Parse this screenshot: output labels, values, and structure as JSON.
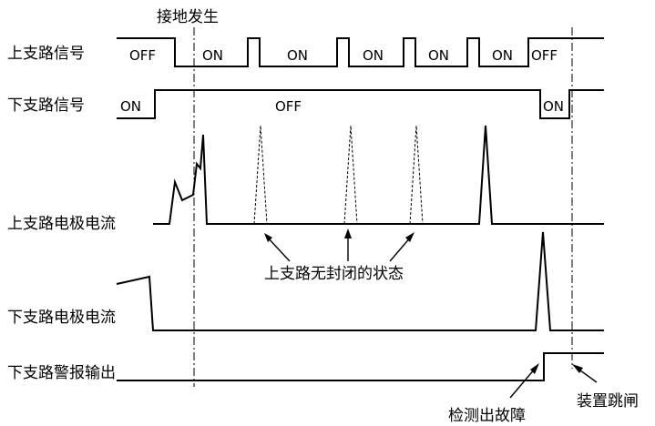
{
  "colors": {
    "line": "#000000",
    "background": "#ffffff"
  },
  "labels": {
    "upper_signal": "上支路信号",
    "lower_signal": "下支路信号",
    "upper_current": "上支路电极电流",
    "lower_current": "下支路电极电流",
    "lower_alarm": "下支路警报输出"
  },
  "events": {
    "ground_fault": "接地发生",
    "fault_detected": "检测出故障",
    "device_trip": "装置跳闸"
  },
  "annotations": {
    "unsealed_state": "上支路无封闭的状态"
  },
  "upper_signal_states": [
    "OFF",
    "ON",
    "ON",
    "ON",
    "ON",
    "ON",
    "OFF"
  ],
  "lower_signal_states": [
    "ON",
    "OFF",
    "ON"
  ]
}
